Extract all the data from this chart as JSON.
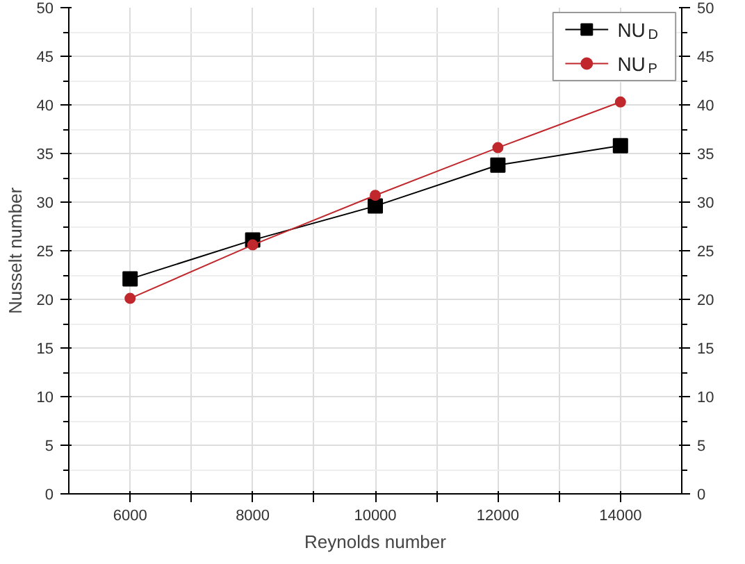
{
  "chart_data": {
    "type": "line",
    "xlabel": "Reynolds number",
    "ylabel": "Nusselt number",
    "x": [
      6000,
      8000,
      10000,
      12000,
      14000
    ],
    "series": [
      {
        "name": "NU$_{D}$",
        "color": "#000000",
        "marker": "square",
        "values": [
          22.1,
          26.1,
          29.6,
          33.8,
          35.8
        ]
      },
      {
        "name": "NU$_{P}$",
        "color": "#c0282d",
        "marker": "circle",
        "values": [
          20.1,
          25.6,
          30.7,
          35.6,
          40.3
        ]
      }
    ],
    "xlim": [
      5000,
      15000
    ],
    "xticks": [
      6000,
      {
        "value": 7000,
        "label": null
      },
      8000,
      {
        "value": 9000,
        "label": null
      },
      10000,
      {
        "value": 11000,
        "label": null
      },
      12000,
      {
        "value": 13000,
        "label": null
      },
      14000
    ],
    "ylim": [
      0,
      50
    ],
    "yticks": [
      0,
      5,
      10,
      15,
      20,
      25,
      30,
      35,
      40,
      45,
      50
    ],
    "y2lim": [
      0,
      50
    ],
    "y2ticks": [
      0,
      5,
      10,
      15,
      20,
      25,
      30,
      35,
      40,
      45,
      50
    ],
    "grid": true,
    "legend": "top right",
    "line_style": "solid"
  }
}
